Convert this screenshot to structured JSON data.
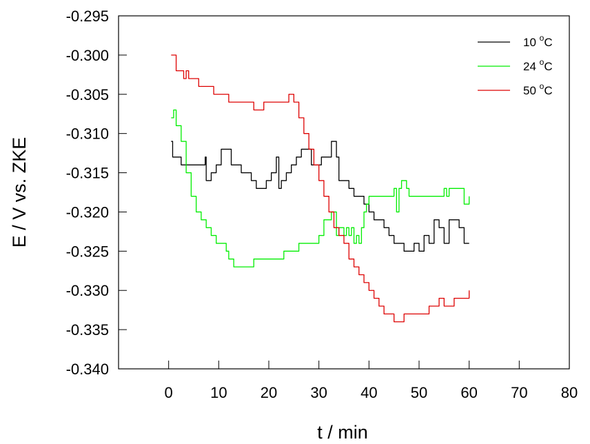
{
  "chart_data": {
    "type": "line",
    "title": "",
    "xlabel": "t / min",
    "ylabel": "E / V vs. ZKE",
    "xlim": [
      -10,
      80
    ],
    "ylim": [
      -0.34,
      -0.295
    ],
    "x_ticks": [
      0,
      10,
      20,
      30,
      40,
      50,
      60,
      70,
      80
    ],
    "x_tick_labels": [
      "0",
      "10",
      "20",
      "30",
      "40",
      "50",
      "60",
      "70",
      "80"
    ],
    "y_ticks": [
      -0.295,
      -0.3,
      -0.305,
      -0.31,
      -0.315,
      -0.32,
      -0.325,
      -0.33,
      -0.335,
      -0.34
    ],
    "y_tick_labels": [
      "-0.295",
      "-0.300",
      "-0.305",
      "-0.310",
      "-0.315",
      "-0.320",
      "-0.325",
      "-0.330",
      "-0.335",
      "-0.340"
    ],
    "grid": false,
    "legend_position": "top-right",
    "series": [
      {
        "name": "10 °C",
        "label_main": "10 ",
        "label_sup": "o",
        "label_unit": "C",
        "color": "#000000",
        "x": [
          0.5,
          0.8,
          1.5,
          2.5,
          3.5,
          5.0,
          7.0,
          7.3,
          7.5,
          8.5,
          9.5,
          10.5,
          11.5,
          12.5,
          13.5,
          14.5,
          15.5,
          16.5,
          17.5,
          18.5,
          19.5,
          20.5,
          21.2,
          21.5,
          22.0,
          22.5,
          23.5,
          24.5,
          25.5,
          26.5,
          27.5,
          28.5,
          29.5,
          30.5,
          31.5,
          32.5,
          33.0,
          33.5,
          34.0,
          35.0,
          36.0,
          37.0,
          38.0,
          39.0,
          40.0,
          41.0,
          42.0,
          43.0,
          44.0,
          45.0,
          46.0,
          47.0,
          48.0,
          49.0,
          50.0,
          51.0,
          52.0,
          53.0,
          54.0,
          55.0,
          56.0,
          57.0,
          58.0,
          59.0,
          60.0
        ],
        "values": [
          -0.311,
          -0.313,
          -0.313,
          -0.314,
          -0.314,
          -0.314,
          -0.314,
          -0.313,
          -0.316,
          -0.315,
          -0.314,
          -0.312,
          -0.312,
          -0.314,
          -0.314,
          -0.315,
          -0.315,
          -0.316,
          -0.317,
          -0.317,
          -0.316,
          -0.315,
          -0.315,
          -0.313,
          -0.317,
          -0.316,
          -0.315,
          -0.314,
          -0.313,
          -0.312,
          -0.312,
          -0.314,
          -0.314,
          -0.313,
          -0.313,
          -0.311,
          -0.311,
          -0.313,
          -0.316,
          -0.316,
          -0.317,
          -0.318,
          -0.318,
          -0.319,
          -0.32,
          -0.321,
          -0.321,
          -0.322,
          -0.323,
          -0.324,
          -0.324,
          -0.325,
          -0.325,
          -0.324,
          -0.325,
          -0.323,
          -0.324,
          -0.321,
          -0.322,
          -0.324,
          -0.321,
          -0.321,
          -0.322,
          -0.324,
          -0.324
        ]
      },
      {
        "name": "24 °C",
        "label_main": "24 ",
        "label_sup": "o",
        "label_unit": "C",
        "color": "#00ee00",
        "x": [
          0.5,
          1.0,
          1.5,
          2.5,
          3.5,
          4.5,
          5.5,
          6.5,
          7.5,
          8.5,
          9.5,
          10.5,
          11.5,
          12.0,
          13.0,
          14.0,
          15.0,
          16.0,
          17.0,
          18.0,
          19.0,
          20.0,
          21.0,
          22.0,
          23.0,
          24.0,
          25.0,
          26.0,
          27.0,
          28.0,
          29.0,
          30.0,
          31.0,
          32.0,
          32.5,
          33.0,
          33.5,
          34.0,
          34.5,
          35.0,
          35.5,
          36.0,
          36.5,
          37.0,
          37.5,
          38.0,
          38.5,
          39.0,
          39.5,
          40.0,
          41.0,
          42.0,
          43.0,
          44.0,
          45.0,
          45.5,
          46.0,
          46.5,
          47.0,
          47.5,
          48.0,
          49.0,
          50.0,
          51.0,
          52.0,
          53.0,
          54.0,
          55.0,
          55.5,
          56.0,
          57.0,
          58.0,
          59.0,
          60.0
        ],
        "values": [
          -0.308,
          -0.307,
          -0.309,
          -0.311,
          -0.315,
          -0.318,
          -0.32,
          -0.321,
          -0.322,
          -0.323,
          -0.324,
          -0.324,
          -0.325,
          -0.326,
          -0.327,
          -0.327,
          -0.327,
          -0.327,
          -0.326,
          -0.326,
          -0.326,
          -0.326,
          -0.326,
          -0.326,
          -0.325,
          -0.325,
          -0.325,
          -0.324,
          -0.324,
          -0.324,
          -0.324,
          -0.323,
          -0.321,
          -0.321,
          -0.32,
          -0.32,
          -0.323,
          -0.322,
          -0.322,
          -0.323,
          -0.322,
          -0.323,
          -0.322,
          -0.324,
          -0.323,
          -0.324,
          -0.322,
          -0.32,
          -0.319,
          -0.318,
          -0.318,
          -0.318,
          -0.318,
          -0.318,
          -0.317,
          -0.32,
          -0.317,
          -0.316,
          -0.316,
          -0.317,
          -0.318,
          -0.318,
          -0.318,
          -0.318,
          -0.318,
          -0.318,
          -0.318,
          -0.317,
          -0.318,
          -0.317,
          -0.317,
          -0.317,
          -0.319,
          -0.318
        ]
      },
      {
        "name": "50 °C",
        "label_main": "50 ",
        "label_sup": "o",
        "label_unit": "C",
        "color": "#dd0000",
        "x": [
          0.5,
          1.0,
          1.5,
          2.5,
          3.0,
          3.5,
          4.0,
          5.0,
          6.0,
          7.0,
          8.0,
          9.0,
          10.0,
          11.0,
          12.0,
          13.0,
          14.0,
          15.0,
          16.0,
          17.0,
          18.0,
          19.0,
          20.0,
          21.0,
          22.0,
          23.0,
          24.0,
          24.5,
          25.0,
          26.0,
          27.0,
          28.0,
          29.0,
          30.0,
          31.0,
          32.0,
          33.0,
          34.0,
          35.0,
          36.0,
          37.0,
          38.0,
          39.0,
          40.0,
          41.0,
          42.0,
          43.0,
          44.0,
          45.0,
          46.0,
          47.0,
          48.0,
          49.0,
          50.0,
          51.0,
          52.0,
          53.0,
          54.0,
          55.0,
          56.0,
          57.0,
          58.0,
          59.0,
          60.0
        ],
        "values": [
          -0.3,
          -0.3,
          -0.302,
          -0.302,
          -0.303,
          -0.302,
          -0.303,
          -0.303,
          -0.304,
          -0.304,
          -0.304,
          -0.305,
          -0.305,
          -0.305,
          -0.306,
          -0.306,
          -0.306,
          -0.306,
          -0.306,
          -0.307,
          -0.307,
          -0.306,
          -0.306,
          -0.306,
          -0.306,
          -0.306,
          -0.305,
          -0.305,
          -0.306,
          -0.308,
          -0.31,
          -0.312,
          -0.314,
          -0.316,
          -0.318,
          -0.32,
          -0.322,
          -0.323,
          -0.324,
          -0.326,
          -0.327,
          -0.328,
          -0.329,
          -0.33,
          -0.331,
          -0.332,
          -0.333,
          -0.333,
          -0.334,
          -0.334,
          -0.333,
          -0.333,
          -0.333,
          -0.333,
          -0.333,
          -0.332,
          -0.332,
          -0.331,
          -0.332,
          -0.332,
          -0.331,
          -0.331,
          -0.331,
          -0.33
        ]
      }
    ]
  }
}
